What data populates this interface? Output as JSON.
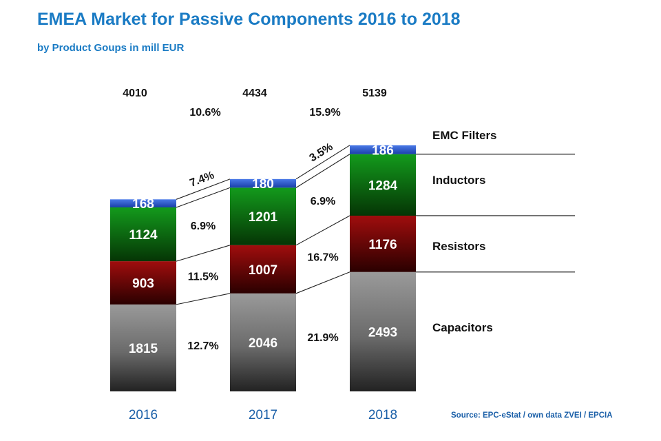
{
  "title": "EMEA Market for Passive Components 2016 to 2018",
  "subtitle": "by Product Goups in mill EUR",
  "source": "Source: EPC-eStat / own data ZVEI / EPCIA",
  "colors": {
    "title": "#1a7bc4",
    "emc_filters": "#2f5fcf",
    "inductors": "#0f7a16",
    "resistors": "#8a0a0a",
    "capacitors": "#8c8c8c"
  },
  "chart_data": {
    "type": "bar",
    "stacked": true,
    "title": "EMEA Market for Passive Components 2016 to 2018",
    "subtitle": "by Product Goups in mill EUR",
    "categories": [
      "2016",
      "2017",
      "2018"
    ],
    "series": [
      {
        "name": "Capacitors",
        "values": [
          1815,
          2046,
          2493
        ]
      },
      {
        "name": "Resistors",
        "values": [
          903,
          1007,
          1176
        ]
      },
      {
        "name": "Inductors",
        "values": [
          1124,
          1201,
          1284
        ]
      },
      {
        "name": "EMC Filters",
        "values": [
          168,
          180,
          186
        ]
      }
    ],
    "totals": [
      "4010",
      "4434",
      "5139"
    ],
    "total_growth": [
      "10.6%",
      "15.9%"
    ],
    "segment_growth": [
      {
        "name": "Capacitors",
        "values": [
          "12.7%",
          "21.9%"
        ]
      },
      {
        "name": "Resistors",
        "values": [
          "11.5%",
          "16.7%"
        ]
      },
      {
        "name": "Inductors",
        "values": [
          "6.9%",
          "6.9%"
        ]
      },
      {
        "name": "EMC Filters",
        "values": [
          "7.4%",
          "3.5%"
        ]
      }
    ],
    "legend": [
      "EMC Filters",
      "Inductors",
      "Resistors",
      "Capacitors"
    ],
    "legend_position": "right",
    "grid": false
  }
}
